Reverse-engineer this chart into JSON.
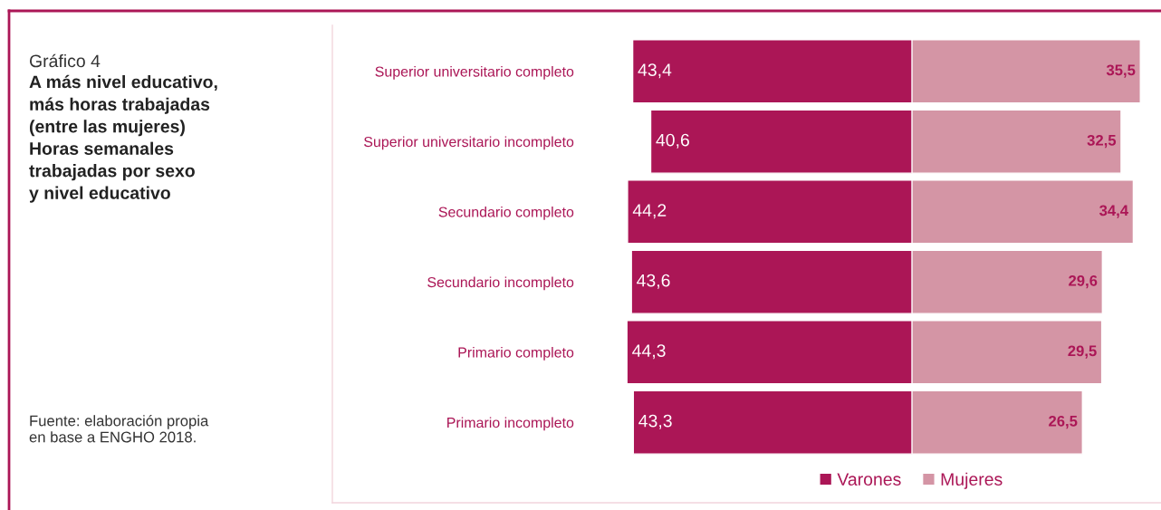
{
  "chart_data": [
    {
      "type": "other",
      "title": "Gráfico 4",
      "subtitle": "A más nivel educativo,\nmás horas trabajadas\n(entre las mujeres)\nHoras semanales\ntrabajadas por sexo\ny nivel educativo",
      "annotations": [
        "Fuente: elaboración propia\nen base a ENGHO 2018."
      ]
    },
    {
      "type": "bar",
      "orientation": "horizontal",
      "categories": [
        "Superior universitario completo",
        "Superior universitario incompleto",
        "Secundario completo",
        "Secundario incompleto",
        "Primario completo",
        "Primario incompleto"
      ],
      "series": [
        {
          "name": "Varones",
          "color": "#ab1656",
          "values": [
            43.4,
            40.6,
            44.2,
            43.6,
            44.3,
            43.3
          ],
          "value_labels": [
            "43,4",
            "40,6",
            "44,2",
            "43,6",
            "44,3",
            "43,3"
          ]
        }
      ],
      "tick_labels": "y",
      "grid": false,
      "legend": "bottom right"
    },
    {
      "type": "bar",
      "orientation": "horizontal",
      "categories": [
        null,
        null,
        null,
        null,
        null,
        null
      ],
      "series": [
        {
          "name": "Mujeres",
          "color": "#d495a5",
          "values": [
            35.5,
            32.5,
            34.4,
            29.6,
            29.5,
            26.5
          ],
          "value_labels": [
            "35,5",
            "32,5",
            "34,4",
            "29,6",
            "29,5",
            "26,5"
          ]
        }
      ],
      "tick_labels": false,
      "grid": false,
      "legend": "bottom left"
    }
  ]
}
